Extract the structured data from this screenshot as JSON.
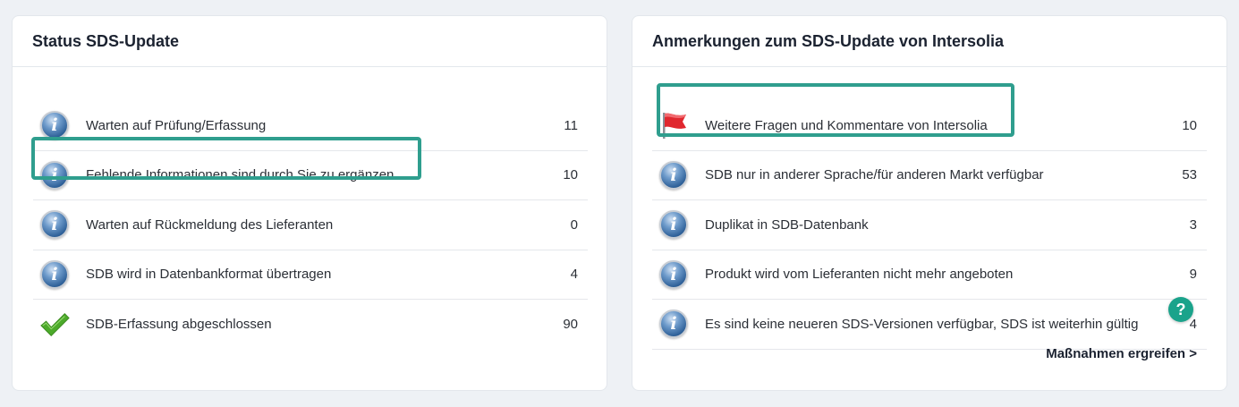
{
  "left_card": {
    "title": "Status SDS-Update",
    "rows": [
      {
        "icon": "info-icon",
        "label": "Warten auf Prüfung/Erfassung",
        "count": "11"
      },
      {
        "icon": "info-icon",
        "label": "Fehlende Informationen sind durch Sie zu ergänzen",
        "count": "10"
      },
      {
        "icon": "info-icon",
        "label": "Warten auf Rückmeldung des Lieferanten",
        "count": "0"
      },
      {
        "icon": "info-icon",
        "label": "SDB wird in Datenbankformat übertragen",
        "count": "4"
      },
      {
        "icon": "checkmark-icon",
        "label": "SDB-Erfassung abgeschlossen",
        "count": "90"
      }
    ]
  },
  "right_card": {
    "title": "Anmerkungen zum SDS-Update von Intersolia",
    "rows": [
      {
        "icon": "red-flag-icon",
        "label": "Weitere Fragen und Kommentare von Intersolia",
        "count": "10"
      },
      {
        "icon": "info-icon",
        "label": "SDB nur in anderer Sprache/für anderen Markt verfügbar",
        "count": "53"
      },
      {
        "icon": "info-icon",
        "label": "Duplikat in SDB-Datenbank",
        "count": "3"
      },
      {
        "icon": "info-icon",
        "label": "Produkt wird vom Lieferanten nicht mehr angeboten",
        "count": "9"
      },
      {
        "icon": "info-icon",
        "label": "Es sind keine neueren SDS-Versionen verfügbar, SDS ist weiterhin gültig",
        "count": "4"
      }
    ],
    "action_label": "Maßnahmen ergreifen >"
  },
  "help": {
    "label": "?"
  },
  "colors": {
    "highlight": "#2f9e8e",
    "help_bubble": "#1aa38b",
    "flag": "#e0272e",
    "check": "#4caa2a"
  }
}
